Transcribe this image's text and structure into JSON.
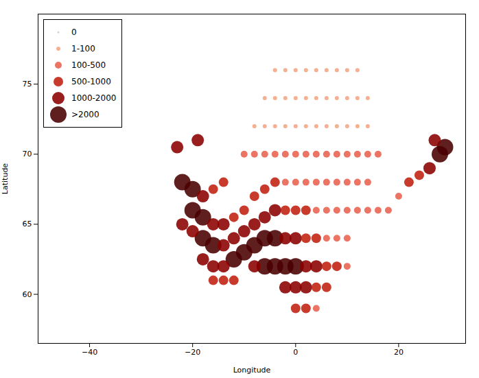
{
  "chart_data": {
    "type": "scatter",
    "xlabel": "Longitude",
    "ylabel": "Latitude",
    "xlim": [
      -50,
      33
    ],
    "ylim": [
      56.5,
      80
    ],
    "xticks": [
      -40,
      -20,
      0,
      20
    ],
    "yticks": [
      60,
      65,
      70,
      75
    ],
    "legend": "upper left",
    "series": [
      {
        "name": "0",
        "color": "#cccccc",
        "x": [],
        "y": []
      },
      {
        "name": "1-100",
        "color": "#f4a582",
        "x": [
          -8,
          -6,
          -4,
          -2,
          0,
          2,
          4,
          6,
          8,
          10,
          12,
          14,
          -6,
          -4,
          -2,
          0,
          2,
          4,
          6,
          8,
          10,
          12,
          14,
          -4,
          -2,
          0,
          2,
          4,
          6,
          8,
          10,
          12
        ],
        "y": [
          72,
          72,
          72,
          72,
          72,
          72,
          72,
          72,
          72,
          72,
          72,
          72,
          74,
          74,
          74,
          74,
          74,
          74,
          74,
          74,
          74,
          74,
          74,
          76,
          76,
          76,
          76,
          76,
          76,
          76,
          76,
          76
        ]
      },
      {
        "name": "100-500",
        "color": "#e8614e",
        "x": [
          -2,
          0,
          2,
          4,
          6,
          8,
          10,
          12,
          14,
          4,
          6,
          8,
          10,
          12,
          14,
          16,
          18,
          20,
          6,
          8,
          10,
          10,
          4,
          -10,
          -8,
          -6,
          -4,
          -2,
          0,
          2,
          4,
          6,
          8,
          10,
          12,
          14,
          16
        ],
        "y": [
          68,
          68,
          68,
          68,
          68,
          68,
          68,
          68,
          68,
          66,
          66,
          66,
          66,
          66,
          66,
          66,
          66,
          67,
          64,
          64,
          64,
          62,
          59,
          70,
          70,
          70,
          70,
          70,
          70,
          70,
          70,
          70,
          70,
          70,
          70,
          70,
          70
        ]
      },
      {
        "name": "500-1000",
        "color": "#c0200f",
        "x": [
          -16,
          -14,
          -12,
          -10,
          -8,
          -6,
          -4,
          -2,
          0,
          2,
          22,
          24,
          2,
          4,
          -16,
          -14,
          -12,
          6,
          8,
          4,
          6,
          0,
          2
        ],
        "y": [
          67.5,
          68,
          65.5,
          66,
          67,
          67.5,
          68,
          66,
          66,
          66,
          68,
          68.5,
          64,
          64,
          61,
          61,
          61,
          62,
          62,
          60.5,
          60.5,
          59,
          59
        ]
      },
      {
        "name": "1000-2000",
        "color": "#8b0000",
        "x": [
          -23,
          -19,
          -18,
          -16,
          -14,
          -22,
          -20,
          -14,
          -12,
          -10,
          -8,
          -6,
          -4,
          26,
          27,
          -18,
          -16,
          -14,
          -2,
          0,
          -8,
          2,
          4,
          -2,
          0,
          2
        ],
        "y": [
          70.5,
          71,
          67,
          65,
          65,
          65,
          64.5,
          63.5,
          64,
          64.5,
          65,
          65.5,
          66,
          69,
          71,
          62.5,
          62,
          62,
          64,
          64,
          62,
          62,
          62,
          60.5,
          60.5,
          60.5
        ]
      },
      {
        "name": ">2000",
        "color": "#4a0000",
        "x": [
          -22,
          -20,
          -20,
          -18,
          28,
          29,
          -18,
          -16,
          -12,
          -10,
          -8,
          -6,
          -4,
          -6,
          -4,
          -2,
          0
        ],
        "y": [
          68,
          67.5,
          66,
          65.5,
          70,
          70.5,
          64,
          63.5,
          62.5,
          63,
          63.5,
          64,
          64,
          62,
          62,
          62,
          62
        ]
      }
    ]
  }
}
